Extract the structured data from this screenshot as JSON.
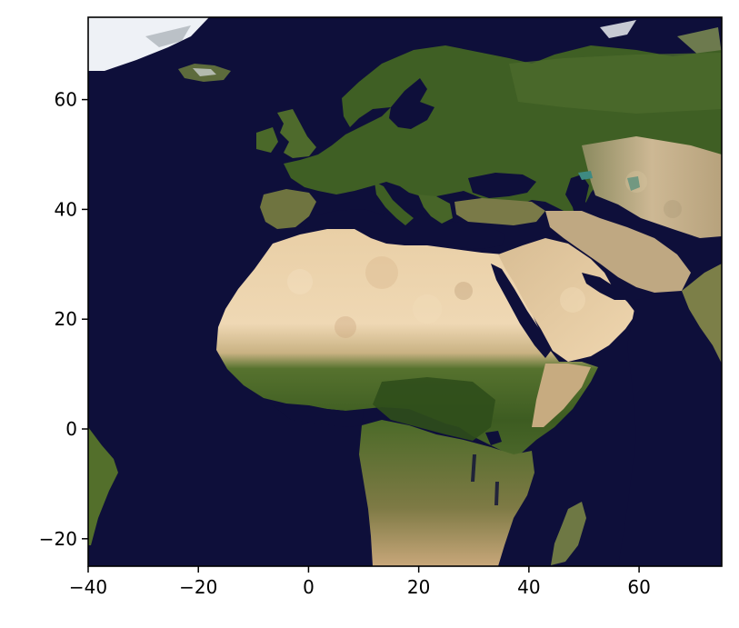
{
  "chart_data": {
    "type": "map",
    "projection": "plate-carree",
    "extent": {
      "lon": [
        -40,
        75
      ],
      "lat": [
        -25,
        75
      ]
    },
    "x_ticks": [
      -40,
      -20,
      0,
      20,
      40,
      60
    ],
    "y_ticks": [
      -20,
      0,
      20,
      40,
      60
    ],
    "x_tick_labels": [
      "−40",
      "−20",
      "0",
      "20",
      "40",
      "60"
    ],
    "y_tick_labels": [
      "−20",
      "0",
      "20",
      "40",
      "60"
    ],
    "grid": false,
    "background_image": "satellite earth imagery (Blue Marble style) of Europe, Africa and the Middle East"
  },
  "colors": {
    "ocean": "#0e0f3a",
    "vegetation": "#3f5f24",
    "forest": "#2f4e1b",
    "desert": "#e2c49c",
    "desert_light": "#f1dcb8",
    "arid": "#bfa882",
    "ice": "#f2f4f8",
    "frame": "#000000"
  }
}
